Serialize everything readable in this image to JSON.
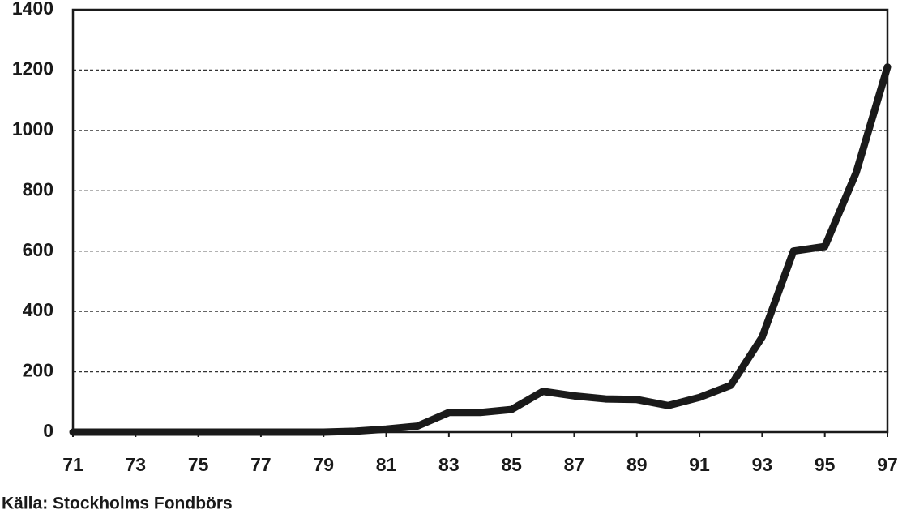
{
  "chart_data": {
    "type": "line",
    "x": [
      71,
      72,
      73,
      74,
      75,
      76,
      77,
      78,
      79,
      80,
      81,
      82,
      83,
      84,
      85,
      86,
      87,
      88,
      89,
      90,
      91,
      92,
      93,
      94,
      95,
      96,
      97
    ],
    "series": [
      {
        "color": "#1a1a1a",
        "values": [
          0,
          0,
          0,
          0,
          0,
          0,
          0,
          0,
          0,
          3,
          10,
          20,
          65,
          65,
          75,
          135,
          120,
          110,
          108,
          88,
          115,
          155,
          315,
          600,
          615,
          860,
          1210
        ]
      }
    ],
    "xlim": [
      71,
      97
    ],
    "xticks": [
      71,
      73,
      75,
      77,
      79,
      81,
      83,
      85,
      87,
      89,
      91,
      93,
      95,
      97
    ],
    "ylim": [
      0,
      1400
    ],
    "yticks": [
      0,
      200,
      400,
      600,
      800,
      1000,
      1200,
      1400
    ],
    "grid": true,
    "source": "Källa: Stockholms Fondbörs"
  }
}
